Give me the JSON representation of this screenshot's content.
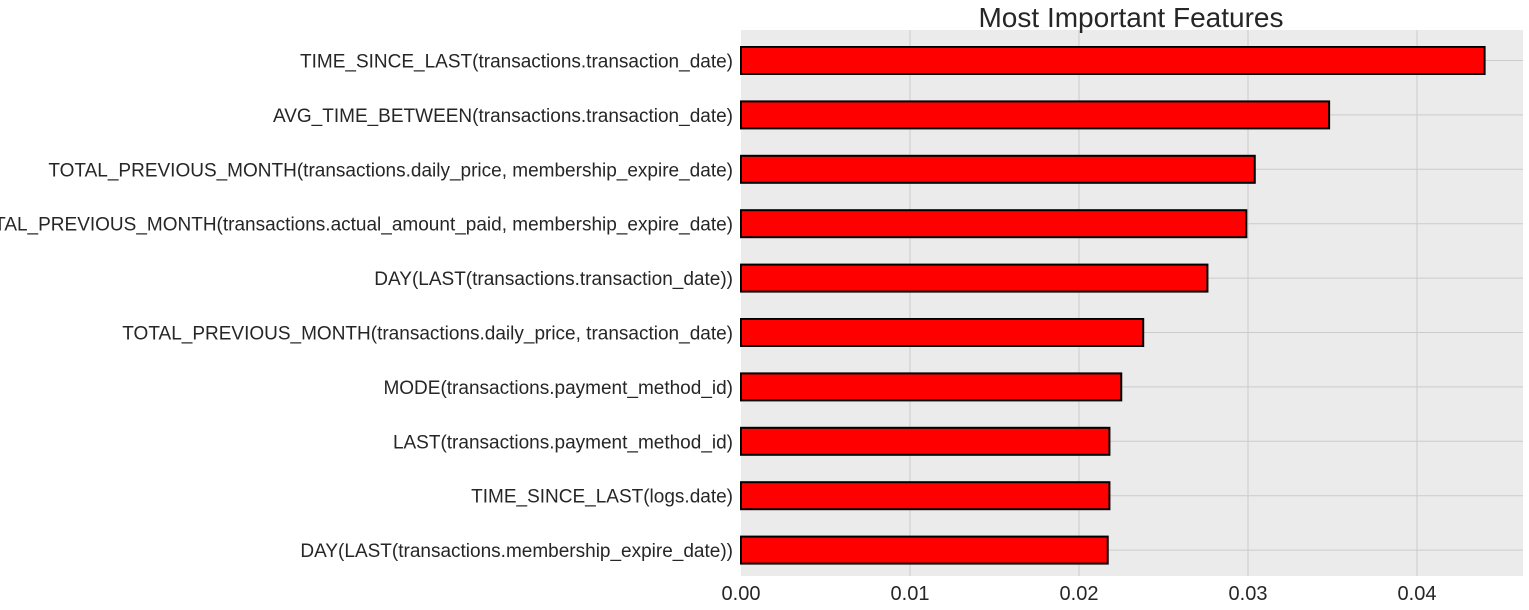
{
  "chart_data": {
    "type": "bar",
    "orientation": "horizontal",
    "title": "Most Important Features",
    "xlabel": "",
    "ylabel": "",
    "xlim": [
      0,
      0.046
    ],
    "xticks": [
      0.0,
      0.01,
      0.02,
      0.03,
      0.04
    ],
    "xtick_labels": [
      "0.00",
      "0.01",
      "0.02",
      "0.03",
      "0.04"
    ],
    "grid": true,
    "bar_color": "#ff0000",
    "bar_edge_color": "#000000",
    "plot_background": "#ebebeb",
    "grid_color": "#cbcbcb",
    "categories": [
      "TIME_SINCE_LAST(transactions.transaction_date)",
      "AVG_TIME_BETWEEN(transactions.transaction_date)",
      "TOTAL_PREVIOUS_MONTH(transactions.daily_price, membership_expire_date)",
      "TOTAL_PREVIOUS_MONTH(transactions.actual_amount_paid, membership_expire_date)",
      "DAY(LAST(transactions.transaction_date))",
      "TOTAL_PREVIOUS_MONTH(transactions.daily_price, transaction_date)",
      "MODE(transactions.payment_method_id)",
      "LAST(transactions.payment_method_id)",
      "TIME_SINCE_LAST(logs.date)",
      "DAY(LAST(transactions.membership_expire_date))"
    ],
    "values": [
      0.044,
      0.0348,
      0.0304,
      0.0299,
      0.0276,
      0.0238,
      0.0225,
      0.0218,
      0.0218,
      0.0217
    ]
  }
}
